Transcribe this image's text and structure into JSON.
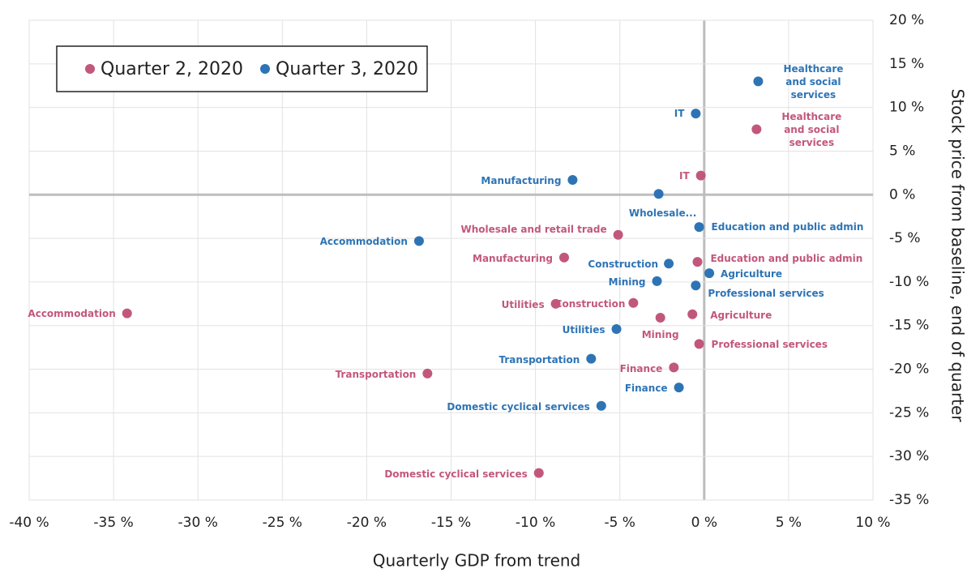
{
  "chart_data": {
    "type": "scatter",
    "x_label": "Quarterly GDP from trend",
    "y_label": "Stock price from baseline, end of quarter",
    "xlim": [
      -40,
      10
    ],
    "ylim": [
      -35,
      20
    ],
    "xticks": [
      {
        "value": -40,
        "label": "-40 %"
      },
      {
        "value": -35,
        "label": "-35 %"
      },
      {
        "value": -30,
        "label": "-30 %"
      },
      {
        "value": -25,
        "label": "-25 %"
      },
      {
        "value": -20,
        "label": "-20 %"
      },
      {
        "value": -15,
        "label": "-15 %"
      },
      {
        "value": -10,
        "label": "-10 %"
      },
      {
        "value": -5,
        "label": "-5 %"
      },
      {
        "value": 0,
        "label": "0 %"
      },
      {
        "value": 5,
        "label": "5 %"
      },
      {
        "value": 10,
        "label": "10 %"
      }
    ],
    "yticks": [
      {
        "value": 20,
        "label": "20 %"
      },
      {
        "value": 15,
        "label": "15 %"
      },
      {
        "value": 10,
        "label": "10 %"
      },
      {
        "value": 5,
        "label": "5 %"
      },
      {
        "value": 0,
        "label": "0 %"
      },
      {
        "value": -5,
        "label": "-5 %"
      },
      {
        "value": -10,
        "label": "-10 %"
      },
      {
        "value": -15,
        "label": "-15 %"
      },
      {
        "value": -20,
        "label": "-20 %"
      },
      {
        "value": -25,
        "label": "-25 %"
      },
      {
        "value": -30,
        "label": "-30 %"
      },
      {
        "value": -35,
        "label": "-35 %"
      }
    ],
    "grid": true,
    "legend": "top-left",
    "series": [
      {
        "name": "Quarter 2, 2020",
        "color": "#c2577c",
        "labels": [
          "Healthcare and social services",
          "IT",
          "Wholesale and retail trade",
          "Manufacturing",
          "Education and public admin",
          "Utilities",
          "Construction",
          "Accommodation",
          "Mining",
          "Agriculture",
          "Professional services",
          "Finance",
          "Transportation",
          "Domestic cyclical services"
        ],
        "x": [
          3.1,
          -0.2,
          -5.1,
          -8.3,
          -0.4,
          -8.8,
          -4.2,
          -34.2,
          -2.6,
          -0.7,
          -0.3,
          -1.8,
          -16.4,
          -9.8
        ],
        "values": [
          7.5,
          2.2,
          -4.6,
          -7.2,
          -7.7,
          -12.5,
          -12.4,
          -13.6,
          -14.1,
          -13.7,
          -17.1,
          -19.8,
          -20.5,
          -31.9
        ]
      },
      {
        "name": "Quarter 3, 2020",
        "color": "#2e74b5",
        "labels": [
          "Healthcare and social services",
          "IT",
          "Manufacturing",
          "Wholesale...",
          "Education and public admin",
          "Accommodation",
          "Construction",
          "Agriculture",
          "Mining",
          "Professional services",
          "Utilities",
          "Transportation",
          "Finance",
          "Domestic cyclical services"
        ],
        "x": [
          3.2,
          -0.5,
          -7.8,
          -2.7,
          -0.3,
          -16.9,
          -2.1,
          0.3,
          -2.8,
          -0.5,
          -5.2,
          -6.7,
          -1.5,
          -6.1
        ],
        "values": [
          13.0,
          9.3,
          1.7,
          0.1,
          -3.7,
          -5.3,
          -7.9,
          -9.0,
          -9.9,
          -10.4,
          -15.4,
          -18.8,
          -22.1,
          -24.2
        ]
      }
    ]
  }
}
